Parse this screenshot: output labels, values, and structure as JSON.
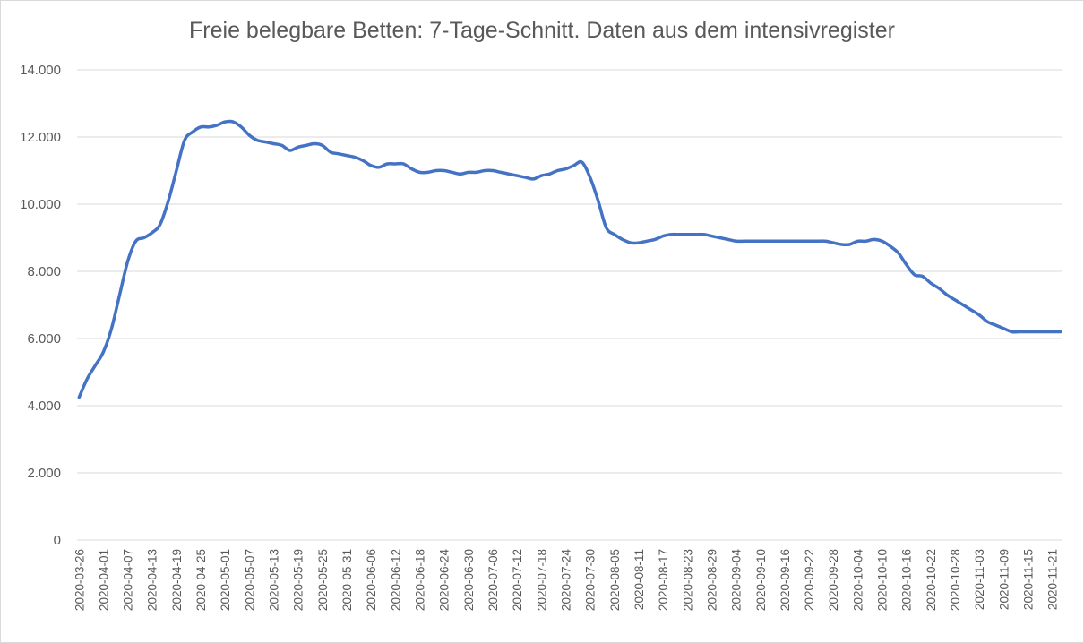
{
  "chart_data": {
    "type": "line",
    "title": "Freie belegbare Betten: 7-Tage-Schnitt. Daten aus dem intensivregister",
    "xlabel": "",
    "ylabel": "",
    "ylim": [
      0,
      14000
    ],
    "grid": true,
    "legend": "none",
    "line_color": "#4472c4",
    "y_tick_values": [
      0,
      2000,
      4000,
      6000,
      8000,
      10000,
      12000,
      14000
    ],
    "y_tick_labels": [
      "0",
      "2.000",
      "4.000",
      "6.000",
      "8.000",
      "10.000",
      "12.000",
      "14.000"
    ],
    "x_tick_labels": [
      "2020-03-26",
      "2020-04-01",
      "2020-04-07",
      "2020-04-13",
      "2020-04-19",
      "2020-04-25",
      "2020-05-01",
      "2020-05-07",
      "2020-05-13",
      "2020-05-19",
      "2020-05-25",
      "2020-05-31",
      "2020-06-06",
      "2020-06-12",
      "2020-06-18",
      "2020-06-24",
      "2020-06-30",
      "2020-07-06",
      "2020-07-12",
      "2020-07-18",
      "2020-07-24",
      "2020-07-30",
      "2020-08-05",
      "2020-08-11",
      "2020-08-17",
      "2020-08-23",
      "2020-08-29",
      "2020-09-04",
      "2020-09-10",
      "2020-09-16",
      "2020-09-22",
      "2020-09-28",
      "2020-10-04",
      "2020-10-10",
      "2020-10-16",
      "2020-10-22",
      "2020-10-28",
      "2020-11-03",
      "2020-11-09",
      "2020-11-15",
      "2020-11-21"
    ],
    "series": [
      {
        "x": [
          "2020-03-26",
          "2020-03-28",
          "2020-03-30",
          "2020-04-01",
          "2020-04-03",
          "2020-04-05",
          "2020-04-07",
          "2020-04-09",
          "2020-04-11",
          "2020-04-13",
          "2020-04-15",
          "2020-04-17",
          "2020-04-19",
          "2020-04-21",
          "2020-04-23",
          "2020-04-25",
          "2020-04-27",
          "2020-04-29",
          "2020-05-01",
          "2020-05-03",
          "2020-05-05",
          "2020-05-07",
          "2020-05-09",
          "2020-05-11",
          "2020-05-13",
          "2020-05-15",
          "2020-05-17",
          "2020-05-19",
          "2020-05-21",
          "2020-05-23",
          "2020-05-25",
          "2020-05-27",
          "2020-05-29",
          "2020-05-31",
          "2020-06-02",
          "2020-06-04",
          "2020-06-06",
          "2020-06-08",
          "2020-06-10",
          "2020-06-12",
          "2020-06-14",
          "2020-06-16",
          "2020-06-18",
          "2020-06-20",
          "2020-06-22",
          "2020-06-24",
          "2020-06-26",
          "2020-06-28",
          "2020-06-30",
          "2020-07-02",
          "2020-07-04",
          "2020-07-06",
          "2020-07-08",
          "2020-07-10",
          "2020-07-12",
          "2020-07-14",
          "2020-07-16",
          "2020-07-18",
          "2020-07-20",
          "2020-07-22",
          "2020-07-24",
          "2020-07-26",
          "2020-07-28",
          "2020-07-30",
          "2020-08-01",
          "2020-08-03",
          "2020-08-05",
          "2020-08-07",
          "2020-08-09",
          "2020-08-11",
          "2020-08-13",
          "2020-08-15",
          "2020-08-17",
          "2020-08-19",
          "2020-08-21",
          "2020-08-23",
          "2020-08-25",
          "2020-08-27",
          "2020-08-29",
          "2020-08-31",
          "2020-09-02",
          "2020-09-04",
          "2020-09-06",
          "2020-09-08",
          "2020-09-10",
          "2020-09-12",
          "2020-09-14",
          "2020-09-16",
          "2020-09-18",
          "2020-09-20",
          "2020-09-22",
          "2020-09-24",
          "2020-09-26",
          "2020-09-28",
          "2020-09-30",
          "2020-10-02",
          "2020-10-04",
          "2020-10-06",
          "2020-10-08",
          "2020-10-10",
          "2020-10-12",
          "2020-10-14",
          "2020-10-16",
          "2020-10-18",
          "2020-10-20",
          "2020-10-22",
          "2020-10-24",
          "2020-10-26",
          "2020-10-28",
          "2020-10-30",
          "2020-11-01",
          "2020-11-03",
          "2020-11-05",
          "2020-11-07",
          "2020-11-09",
          "2020-11-11",
          "2020-11-13",
          "2020-11-15",
          "2020-11-17",
          "2020-11-19",
          "2020-11-21",
          "2020-11-23"
        ],
        "values": [
          4250,
          4800,
          5200,
          5600,
          6300,
          7300,
          8300,
          8900,
          9000,
          9150,
          9400,
          10100,
          11000,
          11900,
          12150,
          12300,
          12300,
          12350,
          12450,
          12450,
          12300,
          12050,
          11900,
          11850,
          11800,
          11750,
          11600,
          11700,
          11750,
          11800,
          11750,
          11550,
          11500,
          11450,
          11400,
          11300,
          11150,
          11100,
          11200,
          11200,
          11200,
          11050,
          10950,
          10950,
          11000,
          11000,
          10950,
          10900,
          10950,
          10950,
          11000,
          11000,
          10950,
          10900,
          10850,
          10800,
          10750,
          10850,
          10900,
          11000,
          11050,
          11150,
          11250,
          10800,
          10100,
          9300,
          9100,
          8950,
          8850,
          8850,
          8900,
          8950,
          9050,
          9100,
          9100,
          9100,
          9100,
          9100,
          9050,
          9000,
          8950,
          8900,
          8900,
          8900,
          8900,
          8900,
          8900,
          8900,
          8900,
          8900,
          8900,
          8900,
          8900,
          8850,
          8800,
          8800,
          8900,
          8900,
          8950,
          8900,
          8750,
          8550,
          8200,
          7900,
          7850,
          7650,
          7500,
          7300,
          7150,
          7000,
          6850,
          6700,
          6500,
          6400,
          6300,
          6200,
          6200,
          6200,
          6200,
          6200,
          6200,
          6200
        ],
        "values_note": ""
      }
    ]
  }
}
